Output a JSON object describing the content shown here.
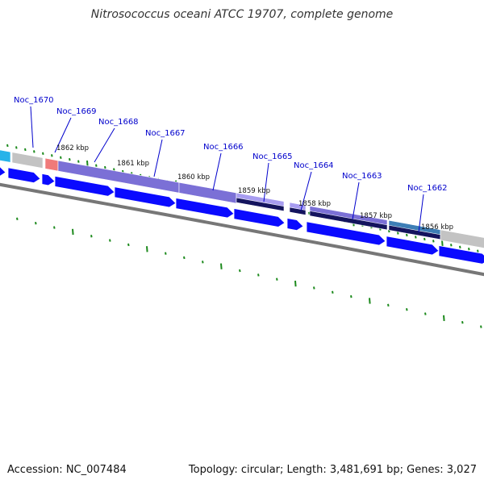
{
  "title": "Nitrosococcus oceani ATCC 19707, complete genome",
  "accession": "Accession: NC_007484",
  "summary": "Topology: circular; Length: 3,481,691 bp; Genes: 3,027",
  "colors": {
    "forward_cds": "#0a0aff",
    "cog_purple": "#7b70d6",
    "cog_navy": "#14145e",
    "cog_lavender": "#a79cf0",
    "cog_steel": "#3d7eb6",
    "cog_gray": "#c3c3c3",
    "cog_salmon": "#f07a7a",
    "cog_cyan": "#27b3e9",
    "tick_green": "#1d8a1d",
    "backbone": "#777777",
    "gene_label": "#0000cc"
  },
  "gene_labels": [
    "Noc_1670",
    "Noc_1669",
    "Noc_1668",
    "Noc_1667",
    "Noc_1666",
    "Noc_1665",
    "Noc_1664",
    "Noc_1663",
    "Noc_1662"
  ],
  "kbp_labels": [
    "1862 kbp",
    "1861 kbp",
    "1860 kbp",
    "1859 kbp",
    "1858 kbp",
    "1857 kbp",
    "1856 kbp"
  ]
}
